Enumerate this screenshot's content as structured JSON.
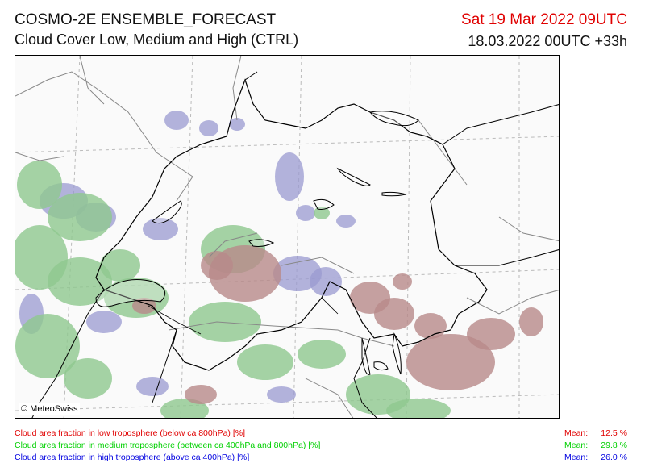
{
  "header": {
    "title": "COSMO-2E ENSEMBLE_FORECAST",
    "subtitle": "Cloud Cover Low, Medium and High (CTRL)",
    "valid_time": "Sat 19 Mar 2022 09UTC",
    "run_time": "18.03.2022 00UTC +33h"
  },
  "map": {
    "copyright": "© MeteoSwiss",
    "region": "Switzerland and surroundings"
  },
  "legend": [
    {
      "label": "Cloud area fraction in low troposphere (below ca 800hPa) [%]",
      "mean_label": "Mean:",
      "mean_value": "12.5 %",
      "color": "#e00000"
    },
    {
      "label": "Cloud area fraction in medium troposphere (between ca 400hPa and 800hPa) [%]",
      "mean_label": "Mean:",
      "mean_value": "29.8 %",
      "color": "#00d000"
    },
    {
      "label": "Cloud area fraction in high troposphere (above ca 400hPa) [%]",
      "mean_label": "Mean:",
      "mean_value": "26.0 %",
      "color": "#0000e0"
    }
  ],
  "colors": {
    "low_cloud": "#b88a8a",
    "medium_cloud": "#8fc88f",
    "high_cloud": "#9a9ad0",
    "border": "#000000",
    "graticule": "#bbbbbb"
  }
}
